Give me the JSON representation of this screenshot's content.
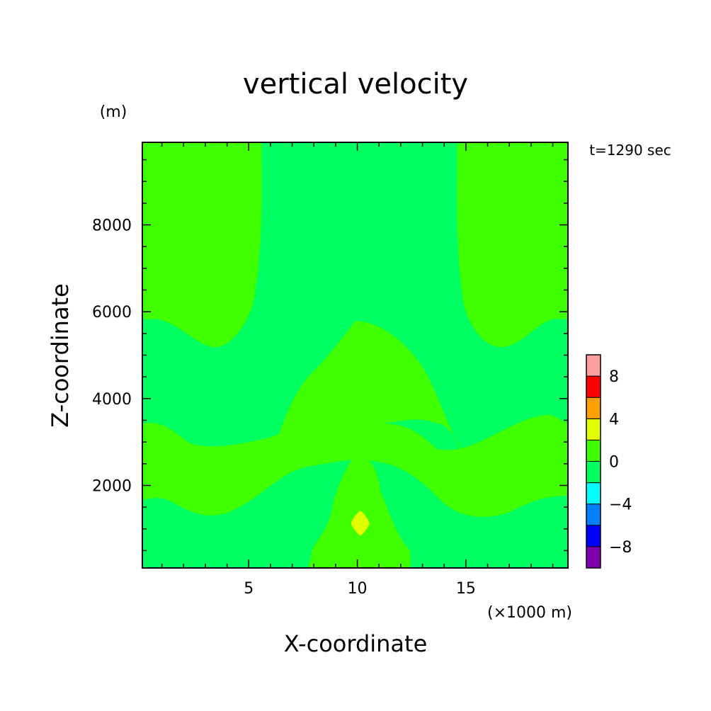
{
  "chart_data": {
    "type": "heatmap",
    "title": "vertical velocity",
    "xlabel": "X-coordinate",
    "ylabel": "Z-coordinate",
    "x_unit": "(×1000 m)",
    "y_unit": "(m)",
    "time_label": "t=1290 sec",
    "xlim": [
      0.1,
      19.7
    ],
    "ylim": [
      100,
      9900
    ],
    "x_ticks": [
      5,
      10,
      15
    ],
    "y_ticks": [
      2000,
      4000,
      6000,
      8000
    ],
    "colorbar": {
      "levels": [
        -10,
        -8,
        -6,
        -4,
        -2,
        0,
        2,
        4,
        6,
        8,
        10
      ],
      "tick_labels": [
        -8,
        -4,
        0,
        4,
        8
      ],
      "colors": [
        "#8000b0",
        "#0000ff",
        "#0080ff",
        "#00ffff",
        "#00ff60",
        "#40ff00",
        "#e0ff00",
        "#ffa000",
        "#ff0000",
        "#ffa0a0"
      ]
    },
    "regions": [
      {
        "name": "w_0_to_2_left_top",
        "band": [
          0,
          2
        ],
        "color": "#40ff00"
      },
      {
        "name": "w_0_to_2_right_top",
        "band": [
          0,
          2
        ],
        "color": "#40ff00"
      },
      {
        "name": "w_0_to_2_center_dome",
        "band": [
          0,
          2
        ],
        "color": "#40ff00"
      },
      {
        "name": "w_0_to_2_lower_band",
        "band": [
          0,
          2
        ],
        "color": "#40ff00"
      },
      {
        "name": "w_0_to_2_updraft",
        "band": [
          0,
          2
        ],
        "color": "#40ff00"
      },
      {
        "name": "w_2_to_4_core",
        "band": [
          2,
          4
        ],
        "color": "#e0ff00"
      }
    ]
  }
}
